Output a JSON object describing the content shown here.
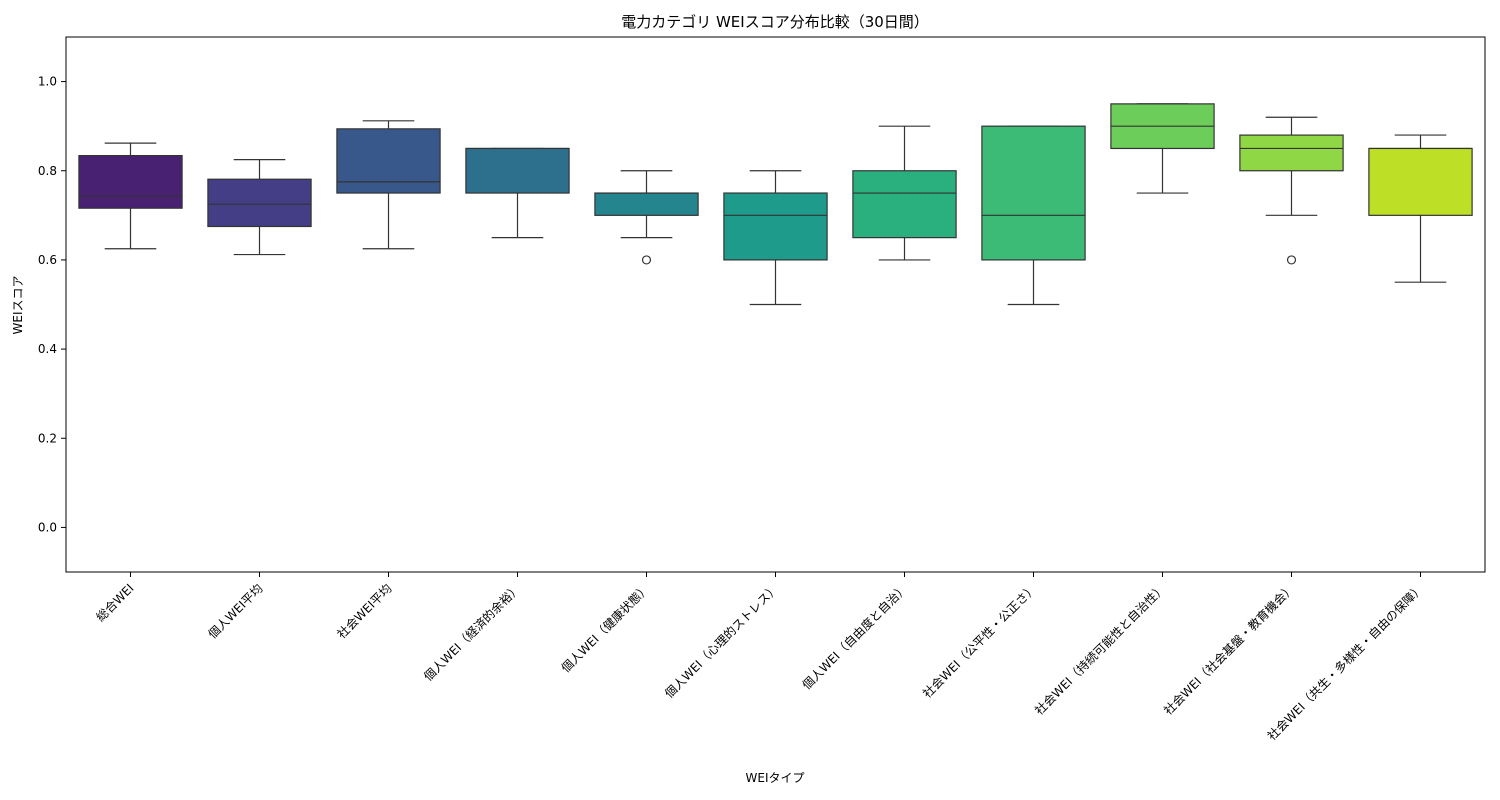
{
  "chart_data": {
    "type": "box",
    "title": "電力カテゴリ WEIスコア分布比較（30日間）",
    "xlabel": "WEIタイプ",
    "ylabel": "WEIスコア",
    "ylim": [
      -0.1,
      1.1
    ],
    "yticks": [
      "0.0",
      "0.2",
      "0.4",
      "0.6",
      "0.8",
      "1.0"
    ],
    "grid": false,
    "categories": [
      {
        "label": "総合WEI",
        "q1": 0.716,
        "median": 0.743,
        "q3": 0.834,
        "whisker_low": 0.625,
        "whisker_high": 0.862,
        "outliers": [],
        "color": "#482173"
      },
      {
        "label": "個人WEI平均",
        "q1": 0.675,
        "median": 0.725,
        "q3": 0.781,
        "whisker_low": 0.612,
        "whisker_high": 0.825,
        "outliers": [],
        "color": "#433e85"
      },
      {
        "label": "社会WEI平均",
        "q1": 0.75,
        "median": 0.775,
        "q3": 0.894,
        "whisker_low": 0.625,
        "whisker_high": 0.912,
        "outliers": [],
        "color": "#38588c"
      },
      {
        "label": "個人WEI（経済的余裕）",
        "q1": 0.75,
        "median": 0.85,
        "q3": 0.85,
        "whisker_low": 0.65,
        "whisker_high": 0.85,
        "outliers": [],
        "color": "#2d708e"
      },
      {
        "label": "個人WEI（健康状態）",
        "q1": 0.7,
        "median": 0.75,
        "q3": 0.75,
        "whisker_low": 0.65,
        "whisker_high": 0.8,
        "outliers": [
          0.6
        ],
        "color": "#25858e"
      },
      {
        "label": "個人WEI（心理的ストレス）",
        "q1": 0.6,
        "median": 0.7,
        "q3": 0.75,
        "whisker_low": 0.5,
        "whisker_high": 0.8,
        "outliers": [],
        "color": "#1e9b8a"
      },
      {
        "label": "個人WEI（自由度と自治）",
        "q1": 0.65,
        "median": 0.75,
        "q3": 0.8,
        "whisker_low": 0.6,
        "whisker_high": 0.9,
        "outliers": [],
        "color": "#2ab07f"
      },
      {
        "label": "社会WEI（公平性・公正さ）",
        "q1": 0.6,
        "median": 0.7,
        "q3": 0.9,
        "whisker_low": 0.5,
        "whisker_high": 0.9,
        "outliers": [],
        "color": "#3bbb75"
      },
      {
        "label": "社会WEI（持続可能性と自治性）",
        "q1": 0.85,
        "median": 0.9,
        "q3": 0.95,
        "whisker_low": 0.75,
        "whisker_high": 0.95,
        "outliers": [],
        "color": "#6ccd5a"
      },
      {
        "label": "社会WEI（社会基盤・教育機会）",
        "q1": 0.8,
        "median": 0.85,
        "q3": 0.88,
        "whisker_low": 0.7,
        "whisker_high": 0.92,
        "outliers": [
          0.6
        ],
        "color": "#8fd744"
      },
      {
        "label": "社会WEI（共生・多様性・自由の保障）",
        "q1": 0.7,
        "median": 0.85,
        "q3": 0.85,
        "whisker_low": 0.55,
        "whisker_high": 0.88,
        "outliers": [],
        "color": "#bddf26"
      }
    ]
  }
}
